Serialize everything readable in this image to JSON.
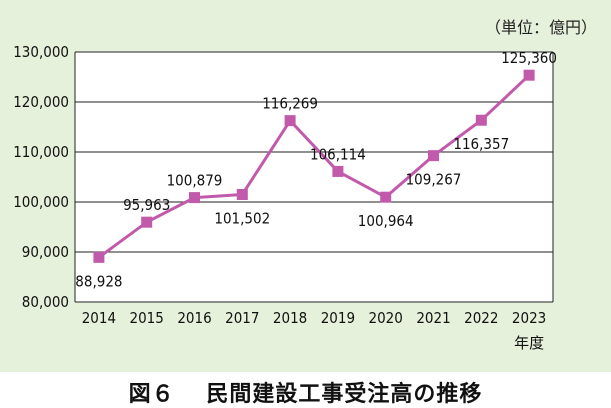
{
  "unit_label": "（単位：億円）",
  "caption": "図６　 民間建設工事受注高の推移",
  "colors": {
    "series": "#c15aaa",
    "panel": "#e6f1dc",
    "plot_bg": "#ffffff",
    "grid": "#222222"
  },
  "chart_data": {
    "type": "line",
    "title": "",
    "xlabel": "年度",
    "ylabel": "",
    "categories": [
      "2014",
      "2015",
      "2016",
      "2017",
      "2018",
      "2019",
      "2020",
      "2021",
      "2022",
      "2023"
    ],
    "ylim": [
      80000,
      130000
    ],
    "yticks": [
      80000,
      90000,
      100000,
      110000,
      120000,
      130000
    ],
    "ytick_labels": [
      "80,000",
      "90,000",
      "100,000",
      "110,000",
      "120,000",
      "130,000"
    ],
    "grid": true,
    "series": [
      {
        "values": [
          88928,
          95963,
          100879,
          101502,
          116269,
          106114,
          100964,
          109267,
          116357,
          125360
        ],
        "labels": [
          "88,928",
          "95,963",
          "100,879",
          "101,502",
          "116,269",
          "106,114",
          "100,964",
          "109,267",
          "116,357",
          "125,360"
        ],
        "label_positions": [
          "below",
          "above",
          "above",
          "below",
          "above",
          "above",
          "below",
          "below",
          "below",
          "above"
        ]
      }
    ]
  }
}
